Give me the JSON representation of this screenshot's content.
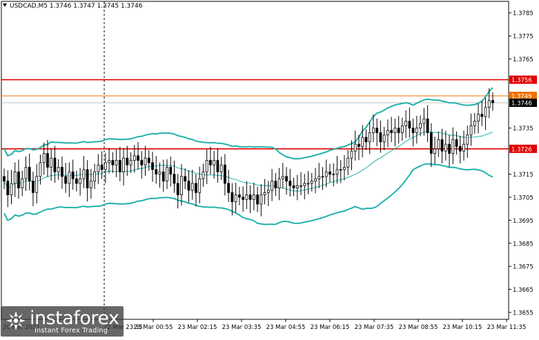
{
  "symbol": {
    "label": "USDCAD,M5",
    "open": "1.3746",
    "high": "1.3747",
    "low": "1.3745",
    "close": "1.3746"
  },
  "colors": {
    "bands": "#20b2aa",
    "mid_band": "#20b2aa",
    "level_line": "#e00000",
    "ask_line": "#f07000",
    "candle": "#000000",
    "grid": "#000000"
  },
  "price_scale": [
    "1.3785",
    "1.3775",
    "1.3765",
    "1.3756",
    "1.3749",
    "1.3746",
    "1.3735",
    "1.3726",
    "1.3715",
    "1.3705",
    "1.3695",
    "1.3685",
    "1.3675",
    "1.3665",
    "1.3655"
  ],
  "time_scale": [
    "23 Mar 00:55",
    "23 Mar 02:15",
    "23 Mar 03:35",
    "23 Mar 04:55",
    "23 Mar 06:15",
    "23 Mar 07:35",
    "23 Mar 08:55",
    "23 Mar 10:15",
    "23 Mar 11:35"
  ],
  "time_scale_partial": [
    "20 Mar 2021",
    "22 Mar 23:35"
  ],
  "levels": [
    {
      "label": "1.3756",
      "value": 1.3756,
      "kind": "resistance"
    },
    {
      "label": "1.3726",
      "value": 1.3726,
      "kind": "support"
    }
  ],
  "ask_level": {
    "label": "1.3749",
    "value": 1.3749
  },
  "current_price": {
    "label": "1.3746",
    "value": 1.3746
  },
  "watermark": {
    "brand": "instaforex",
    "tagline": "Instant Forex Trading"
  },
  "chart_data": {
    "type": "line",
    "title": "USDCAD,M5",
    "ylim": [
      1.3652,
      1.379
    ],
    "close_series": [
      1.3712,
      1.3706,
      1.3711,
      1.3716,
      1.3709,
      1.3713,
      1.3718,
      1.3712,
      1.3707,
      1.3714,
      1.372,
      1.3724,
      1.3718,
      1.3722,
      1.3716,
      1.3718,
      1.3714,
      1.3711,
      1.3716,
      1.3713,
      1.3711,
      1.3713,
      1.3717,
      1.3709,
      1.3712,
      1.3716,
      1.3719,
      1.3717,
      1.372,
      1.3721,
      1.3719,
      1.3721,
      1.3716,
      1.3722,
      1.3719,
      1.3721,
      1.3723,
      1.3721,
      1.3719,
      1.3722,
      1.372,
      1.3717,
      1.3715,
      1.3716,
      1.3712,
      1.3718,
      1.3715,
      1.3711,
      1.3706,
      1.3714,
      1.3712,
      1.3708,
      1.3711,
      1.3707,
      1.3713,
      1.3716,
      1.3721,
      1.3719,
      1.3721,
      1.3716,
      1.3719,
      1.3711,
      1.3707,
      1.3703,
      1.3706,
      1.3705,
      1.3704,
      1.3706,
      1.3704,
      1.3706,
      1.3702,
      1.3706,
      1.3707,
      1.3708,
      1.3712,
      1.3709,
      1.3713,
      1.3714,
      1.3712,
      1.371,
      1.3709,
      1.371,
      1.371,
      1.3711,
      1.3711,
      1.3712,
      1.3713,
      1.3714,
      1.3714,
      1.3716,
      1.3715,
      1.3715,
      1.3717,
      1.3717,
      1.3718,
      1.3722,
      1.3725,
      1.3728,
      1.3727,
      1.3731,
      1.3729,
      1.3733,
      1.3735,
      1.3733,
      1.3729,
      1.3732,
      1.3734,
      1.3733,
      1.3735,
      1.3733,
      1.3736,
      1.3738,
      1.3735,
      1.3733,
      1.3735,
      1.3737,
      1.3739,
      1.3733,
      1.3724,
      1.3726,
      1.373,
      1.3725,
      1.3728,
      1.3724,
      1.373,
      1.3727,
      1.3725,
      1.3728,
      1.3732,
      1.3736,
      1.3738,
      1.3741,
      1.374,
      1.3744,
      1.3747,
      1.3746
    ]
  }
}
